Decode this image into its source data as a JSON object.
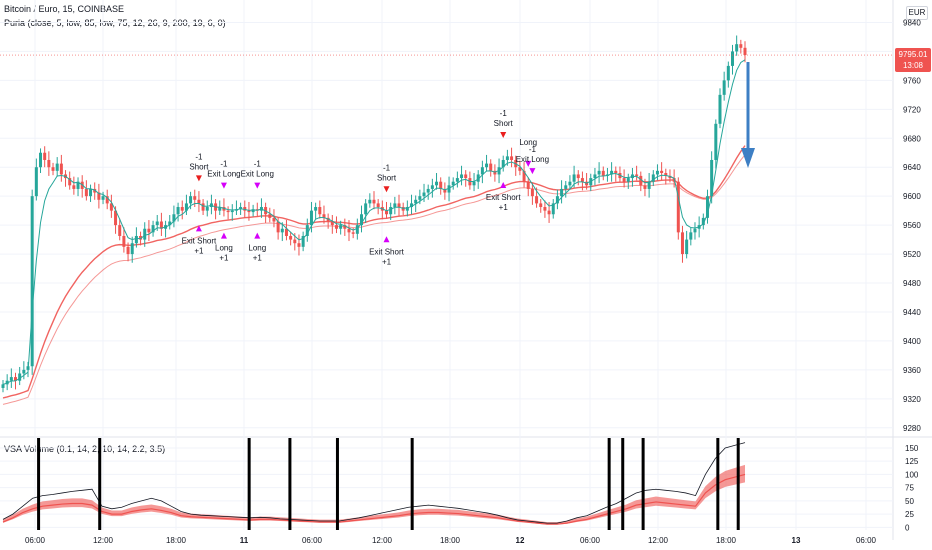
{
  "header": {
    "title": "Bitcoin / Euro, 15, COINBASE",
    "indicator": "Puria (close, 5, low, 85, low, 75, 12, 26, 9, 200, 19, 6, 0)",
    "volume_indicator": "VSA Volume (0.1, 14, 2, 10, 14, 2.2, 3.5)",
    "currency": "EUR"
  },
  "colors": {
    "background": "#ffffff",
    "grid": "#f0f3fa",
    "up_candle": "#26a69a",
    "down_candle": "#ef5350",
    "fast_ma": "#26a69a",
    "slow_ma": "#ef5350",
    "signal_red": "#e91e1e",
    "signal_magenta": "#d500f9",
    "signal_blue": "#2196f3",
    "big_arrow": "#3d7fc4",
    "price_label_bg": "#ef5350",
    "volume_band": "#ef5350",
    "volume_line": "#131722"
  },
  "price_label": {
    "price": "9795.01",
    "countdown": "13:08"
  },
  "chart_data": [
    {
      "type": "candlestick",
      "title": "Bitcoin / Euro, 15, COINBASE",
      "x_ticks": [
        "06:00",
        "12:00",
        "18:00",
        "11",
        "06:00",
        "12:00",
        "18:00",
        "12",
        "06:00",
        "12:00",
        "18:00",
        "13",
        "06:00"
      ],
      "y_ticks": [
        9280,
        9320,
        9360,
        9400,
        9440,
        9480,
        9520,
        9560,
        9600,
        9640,
        9680,
        9720,
        9760,
        9800,
        9840
      ],
      "ylim": [
        9270,
        9860
      ],
      "close_series": [
        9340,
        9345,
        9350,
        9345,
        9355,
        9360,
        9365,
        9600,
        9640,
        9660,
        9650,
        9640,
        9635,
        9645,
        9630,
        9625,
        9615,
        9610,
        9620,
        9610,
        9600,
        9610,
        9605,
        9595,
        9600,
        9590,
        9580,
        9560,
        9545,
        9530,
        9520,
        9535,
        9545,
        9540,
        9555,
        9550,
        9560,
        9565,
        9555,
        9560,
        9565,
        9575,
        9585,
        9580,
        9590,
        9600,
        9595,
        9590,
        9580,
        9585,
        9590,
        9580,
        9585,
        9580,
        9578,
        9580,
        9582,
        9585,
        9580,
        9578,
        9582,
        9580,
        9585,
        9575,
        9570,
        9565,
        9550,
        9555,
        9545,
        9540,
        9535,
        9530,
        9545,
        9560,
        9580,
        9585,
        9575,
        9570,
        9565,
        9560,
        9555,
        9560,
        9555,
        9550,
        9548,
        9560,
        9575,
        9590,
        9595,
        9590,
        9585,
        9580,
        9575,
        9585,
        9590,
        9585,
        9580,
        9585,
        9590,
        9595,
        9600,
        9605,
        9610,
        9615,
        9620,
        9610,
        9605,
        9615,
        9620,
        9625,
        9630,
        9625,
        9615,
        9620,
        9630,
        9640,
        9645,
        9635,
        9630,
        9640,
        9650,
        9655,
        9650,
        9640,
        9635,
        9620,
        9610,
        9600,
        9590,
        9585,
        9580,
        9575,
        9590,
        9600,
        9610,
        9615,
        9620,
        9630,
        9625,
        9620,
        9615,
        9625,
        9630,
        9635,
        9628,
        9630,
        9635,
        9632,
        9625,
        9620,
        9625,
        9630,
        9628,
        9615,
        9610,
        9620,
        9630,
        9635,
        9632,
        9628,
        9625,
        9620,
        9550,
        9520,
        9540,
        9550,
        9555,
        9560,
        9570,
        9600,
        9650,
        9700,
        9740,
        9760,
        9780,
        9800,
        9810,
        9805,
        9795
      ],
      "fast_ma_range": "follows price (green line)",
      "slow_ma_range": [
        9300,
        9620
      ],
      "annotations": [
        {
          "text": "-1",
          "text2": "Short",
          "time_index": 47
        },
        {
          "text": "Exit Short",
          "text2": "+1",
          "time_index": 47,
          "below": true
        },
        {
          "text": "-1",
          "text2": "Exit Long",
          "time_index": 53
        },
        {
          "text": "Long",
          "text2": "+1",
          "time_index": 53,
          "below": true
        },
        {
          "text": "-1",
          "text2": "Exit Long",
          "time_index": 61
        },
        {
          "text": "Long",
          "text2": "+1",
          "time_index": 61,
          "below": true
        },
        {
          "text": "-1",
          "text2": "Short",
          "time_index": 92
        },
        {
          "text": "Exit Short",
          "text2": "+1",
          "time_index": 92,
          "below": true
        },
        {
          "text": "-1",
          "text2": "Short",
          "time_index": 120
        },
        {
          "text": "Exit Short",
          "text2": "+1",
          "time_index": 120,
          "below": true
        },
        {
          "text": "Long",
          "text2": "",
          "time_index": 126
        },
        {
          "text": "-1",
          "text2": "Exit Long",
          "time_index": 127
        }
      ]
    },
    {
      "type": "area",
      "title": "VSA Volume (0.1, 14, 2, 10, 14, 2.2, 3.5)",
      "y_ticks": [
        0,
        25,
        50,
        75,
        100,
        125,
        150
      ],
      "ylim": [
        -5,
        165
      ],
      "series": [
        {
          "values": [
            10,
            18,
            28,
            35,
            40,
            42,
            44,
            45,
            45,
            42,
            30,
            25,
            25,
            30,
            33,
            35,
            32,
            28,
            22,
            20,
            19,
            18,
            17,
            16,
            15,
            14,
            15,
            15,
            14,
            13,
            12,
            11,
            10,
            10,
            10,
            12,
            14,
            16,
            18,
            20,
            22,
            25,
            27,
            28,
            28,
            27,
            26,
            24,
            22,
            20,
            18,
            15,
            12,
            10,
            8,
            6,
            6,
            8,
            12,
            15,
            20,
            25,
            30,
            35,
            42,
            45,
            48,
            46,
            44,
            42,
            40,
            65,
            80,
            90,
            95,
            100
          ]
        },
        {
          "values": [
            15,
            25,
            40,
            55,
            60,
            62,
            65,
            68,
            70,
            72,
            40,
            35,
            38,
            45,
            50,
            55,
            50,
            40,
            30,
            25,
            23,
            22,
            21,
            20,
            19,
            18,
            19,
            18,
            16,
            15,
            14,
            13,
            12,
            12,
            12,
            15,
            18,
            22,
            26,
            30,
            34,
            38,
            40,
            42,
            40,
            38,
            36,
            33,
            30,
            27,
            23,
            18,
            14,
            12,
            10,
            8,
            8,
            12,
            18,
            22,
            30,
            38,
            45,
            55,
            65,
            70,
            72,
            70,
            68,
            65,
            60,
            100,
            130,
            150,
            155,
            160
          ]
        }
      ],
      "spikes_x_index": [
        2,
        11,
        33,
        39,
        46,
        57,
        86,
        88,
        91,
        102,
        105
      ]
    }
  ]
}
